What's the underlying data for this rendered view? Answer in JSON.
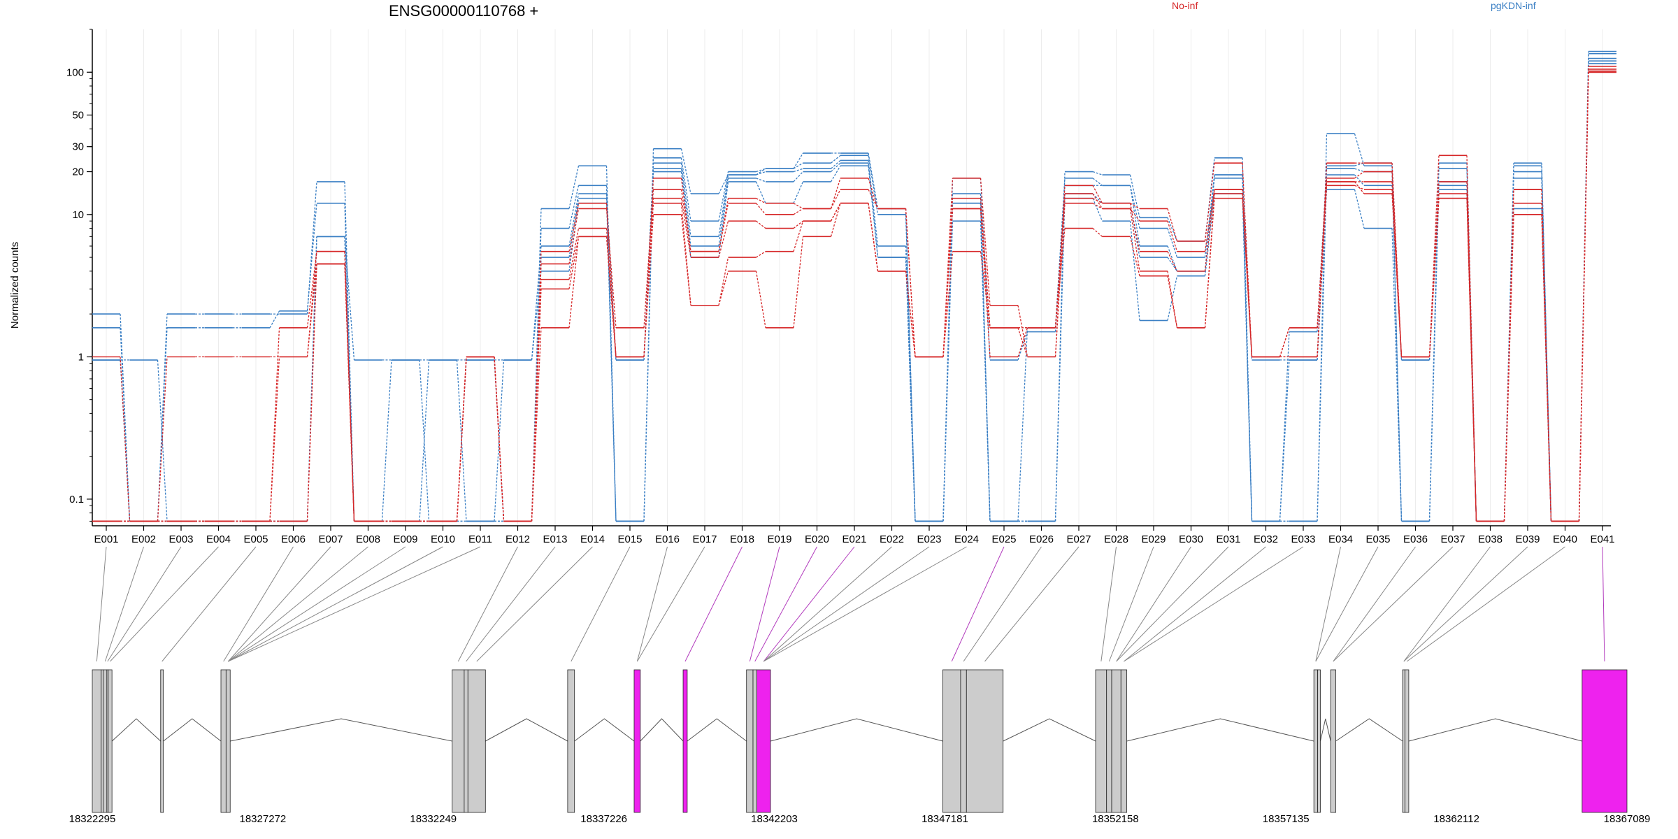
{
  "chart_data": {
    "type": "line",
    "title": "ENSG00000110768 +",
    "ylabel": "Normalized counts",
    "yscale": "log",
    "ylim": [
      0.065,
      200
    ],
    "yticks": [
      0.1,
      1,
      10,
      20,
      30,
      50,
      100
    ],
    "ytick_labels": [
      "0.1",
      "1",
      "10",
      "20",
      "30",
      "50",
      "100"
    ],
    "grid": true,
    "legend_position": "top",
    "categories": [
      "E001",
      "E002",
      "E003",
      "E004",
      "E005",
      "E006",
      "E007",
      "E008",
      "E009",
      "E010",
      "E011",
      "E012",
      "E013",
      "E014",
      "E015",
      "E016",
      "E017",
      "E018",
      "E019",
      "E020",
      "E021",
      "E022",
      "E023",
      "E024",
      "E025",
      "E026",
      "E027",
      "E028",
      "E029",
      "E030",
      "E031",
      "E032",
      "E033",
      "E034",
      "E035",
      "E036",
      "E037",
      "E038",
      "E039",
      "E040",
      "E041"
    ],
    "legend": [
      {
        "name": "No-inf",
        "color": "#d62728"
      },
      {
        "name": "pgKDN-inf",
        "color": "#3a7fc4"
      }
    ],
    "series": [
      {
        "name": "",
        "group": "pgKDN-inf",
        "values": [
          2.0,
          0.07,
          2.0,
          2.0,
          2.0,
          2.0,
          17,
          0.07,
          0.07,
          0.07,
          0.07,
          0.07,
          11,
          22,
          0.07,
          29,
          14,
          19,
          21,
          27,
          27,
          11,
          0.07,
          14,
          0.07,
          0.07,
          20,
          19,
          9.5,
          6.5,
          25,
          0.07,
          0.07,
          37,
          22,
          0.07,
          23,
          0.07,
          23,
          0.07,
          140
        ]
      },
      {
        "name": "",
        "group": "pgKDN-inf",
        "values": [
          1.6,
          0.07,
          1.6,
          1.6,
          1.6,
          2.1,
          12,
          0.07,
          0.07,
          0.07,
          0.07,
          0.07,
          8,
          16,
          0.07,
          25,
          9,
          20,
          21,
          23,
          26,
          10,
          0.07,
          12,
          0.07,
          1.6,
          18,
          16,
          8,
          5,
          19,
          0.07,
          1.5,
          21,
          20,
          0.07,
          21,
          0.07,
          22,
          0.07,
          135
        ]
      },
      {
        "name": "",
        "group": "pgKDN-inf",
        "values": [
          0.95,
          0.95,
          0.07,
          0.07,
          0.07,
          0.07,
          7,
          0.95,
          0.95,
          0.95,
          0.95,
          0.95,
          6,
          14,
          0.95,
          23,
          7,
          19,
          20,
          21,
          24,
          6,
          0.07,
          18,
          0.95,
          1.5,
          16,
          16,
          6,
          4,
          19,
          0.95,
          0.95,
          22,
          23,
          0.95,
          17,
          0.07,
          20,
          0.07,
          125
        ]
      },
      {
        "name": "",
        "group": "pgKDN-inf",
        "values": [
          0.07,
          0.07,
          0.07,
          0.07,
          0.07,
          0.07,
          7,
          0.07,
          0.95,
          0.07,
          0.95,
          0.07,
          5,
          13,
          0.07,
          21,
          6,
          18,
          17,
          20,
          23,
          5,
          0.07,
          12,
          0.07,
          0.07,
          14,
          12,
          5,
          4,
          18,
          0.07,
          0.07,
          19,
          16,
          0.95,
          16,
          0.07,
          18,
          0.07,
          120
        ]
      },
      {
        "name": "",
        "group": "pgKDN-inf",
        "values": [
          0.95,
          0.07,
          0.07,
          0.07,
          0.07,
          0.07,
          7,
          0.07,
          0.07,
          0.95,
          0.07,
          0.95,
          4,
          12,
          0.95,
          20,
          5,
          17,
          12,
          17,
          22,
          5,
          0.07,
          9,
          0.07,
          0.07,
          13,
          9,
          1.8,
          3.7,
          14,
          0.07,
          0.95,
          15,
          8,
          0.07,
          15,
          0.07,
          11,
          0.07,
          115
        ]
      },
      {
        "name": "",
        "group": "No-inf",
        "values": [
          1.0,
          0.07,
          1.0,
          1.0,
          1.0,
          1.0,
          5.5,
          0.07,
          0.07,
          0.07,
          1.0,
          0.07,
          5.5,
          12,
          1.0,
          18,
          5.5,
          13,
          12,
          11,
          18,
          11,
          1.0,
          18,
          2.3,
          1.0,
          16,
          12,
          11,
          6.5,
          23,
          1.0,
          1.0,
          23,
          23,
          1.0,
          26,
          0.07,
          15,
          0.07,
          110
        ]
      },
      {
        "name": "",
        "group": "No-inf",
        "values": [
          0.07,
          0.07,
          0.07,
          0.07,
          0.07,
          1.6,
          5.5,
          0.07,
          0.07,
          0.07,
          1.0,
          0.07,
          4.5,
          11,
          1.6,
          15,
          5.5,
          12,
          10,
          11,
          15,
          11,
          1.0,
          13,
          1.6,
          1.6,
          14,
          11,
          9,
          5.5,
          15,
          1.0,
          1.6,
          18,
          20,
          1.0,
          17,
          0.07,
          15,
          0.07,
          105
        ]
      },
      {
        "name": "",
        "group": "No-inf",
        "values": [
          0.07,
          0.07,
          0.07,
          0.07,
          0.07,
          1.0,
          4.5,
          0.07,
          0.07,
          0.07,
          1.0,
          0.07,
          3.5,
          8,
          1.0,
          13,
          5,
          9,
          8,
          9,
          12,
          4,
          1.0,
          11,
          1.0,
          1.6,
          13,
          12,
          5.5,
          4,
          15,
          1.0,
          1.6,
          17,
          17,
          1.0,
          13,
          0.07,
          12,
          0.07,
          102
        ]
      },
      {
        "name": "",
        "group": "No-inf",
        "values": [
          0.07,
          0.07,
          0.07,
          0.07,
          0.07,
          0.07,
          4.5,
          0.07,
          0.07,
          0.07,
          1.0,
          0.07,
          3,
          7,
          1.0,
          12,
          2.3,
          5,
          5.5,
          9,
          12,
          4,
          1.0,
          11,
          1.6,
          1.0,
          12,
          11,
          4,
          1.6,
          14,
          1.0,
          1.0,
          16,
          15,
          1.0,
          14,
          0.07,
          10,
          0.07,
          100
        ]
      },
      {
        "name": "",
        "group": "No-inf",
        "values": [
          0.07,
          0.07,
          0.07,
          0.07,
          0.07,
          0.07,
          4.5,
          0.07,
          0.07,
          0.07,
          1.0,
          0.07,
          1.6,
          7,
          1.0,
          10,
          2.3,
          4,
          1.6,
          7,
          12,
          4,
          1.0,
          5.5,
          1.6,
          1.6,
          8,
          7,
          3.7,
          1.6,
          13,
          1.0,
          1.0,
          17,
          14,
          1.0,
          13,
          0.07,
          10,
          0.07,
          100
        ]
      }
    ],
    "exon_map": {
      "genomic_ticks": [
        18322295,
        18327272,
        18332249,
        18337226,
        18342203,
        18347181,
        18352158,
        18357135,
        18362112,
        18367089
      ],
      "genomic_range": [
        18322295,
        18367089
      ],
      "exons": [
        {
          "start": 18322295,
          "end": 18322555,
          "highlight": false
        },
        {
          "start": 18322555,
          "end": 18322620,
          "highlight": false
        },
        {
          "start": 18322620,
          "end": 18322720,
          "highlight": false
        },
        {
          "start": 18322720,
          "end": 18322760,
          "highlight": false
        },
        {
          "start": 18322760,
          "end": 18322870,
          "highlight": false
        },
        {
          "start": 18324290,
          "end": 18324370,
          "highlight": false
        },
        {
          "start": 18326050,
          "end": 18326200,
          "highlight": false
        },
        {
          "start": 18326200,
          "end": 18326320,
          "highlight": false
        },
        {
          "start": 18332800,
          "end": 18333150,
          "highlight": false
        },
        {
          "start": 18333150,
          "end": 18333260,
          "highlight": false
        },
        {
          "start": 18333260,
          "end": 18333770,
          "highlight": false
        },
        {
          "start": 18336170,
          "end": 18336370,
          "highlight": false
        },
        {
          "start": 18338110,
          "end": 18338290,
          "highlight": true
        },
        {
          "start": 18339540,
          "end": 18339660,
          "highlight": true
        },
        {
          "start": 18341390,
          "end": 18341580,
          "highlight": false
        },
        {
          "start": 18341580,
          "end": 18341690,
          "highlight": false
        },
        {
          "start": 18341690,
          "end": 18342090,
          "highlight": true
        },
        {
          "start": 18347120,
          "end": 18347640,
          "highlight": false
        },
        {
          "start": 18347640,
          "end": 18347810,
          "highlight": false
        },
        {
          "start": 18347810,
          "end": 18348880,
          "highlight": false
        },
        {
          "start": 18351580,
          "end": 18351900,
          "highlight": false
        },
        {
          "start": 18351900,
          "end": 18352050,
          "highlight": false
        },
        {
          "start": 18352050,
          "end": 18352320,
          "highlight": false
        },
        {
          "start": 18352320,
          "end": 18352490,
          "highlight": false
        },
        {
          "start": 18357950,
          "end": 18358060,
          "highlight": false
        },
        {
          "start": 18358060,
          "end": 18358140,
          "highlight": false
        },
        {
          "start": 18358440,
          "end": 18358590,
          "highlight": false
        },
        {
          "start": 18360540,
          "end": 18360610,
          "highlight": false
        },
        {
          "start": 18360610,
          "end": 18360720,
          "highlight": false
        },
        {
          "start": 18365780,
          "end": 18367089,
          "highlight": true
        }
      ],
      "exon_links": [
        0,
        2,
        3,
        4,
        5,
        6,
        7,
        7,
        7,
        7,
        7,
        8,
        9,
        10,
        11,
        12,
        12,
        13,
        14,
        15,
        16,
        16,
        16,
        16,
        17,
        18,
        19,
        20,
        21,
        22,
        22,
        23,
        23,
        24,
        24,
        26,
        26,
        27,
        27,
        28,
        29
      ],
      "highlight_links": [
        "E018",
        "E019",
        "E020",
        "E021",
        "E025",
        "E041"
      ]
    },
    "colors": {
      "no_inf": "#d62728",
      "pgkdn_inf": "#3a7fc4",
      "highlight": "#ee22ee"
    }
  }
}
